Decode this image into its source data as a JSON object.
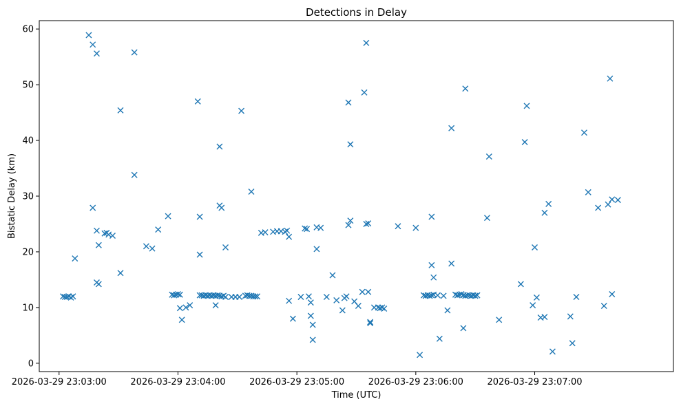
{
  "chart_data": {
    "type": "scatter",
    "title": "Detections in Delay",
    "xlabel": "Time (UTC)",
    "ylabel": "Bistatic Delay (km)",
    "marker": "x",
    "color": "#1f77b4",
    "grid": false,
    "x_unit": "seconds after 2026-03-29 23:02:00 UTC",
    "xlim": [
      50,
      370
    ],
    "ylim": [
      -1.5,
      61.5
    ],
    "x_ticks": [
      {
        "value": 60,
        "label": "2026-03-29 23:03:00"
      },
      {
        "value": 120,
        "label": "2026-03-29 23:04:00"
      },
      {
        "value": 180,
        "label": "2026-03-29 23:05:00"
      },
      {
        "value": 240,
        "label": "2026-03-29 23:06:00"
      },
      {
        "value": 300,
        "label": "2026-03-29 23:07:00"
      }
    ],
    "y_ticks": [
      {
        "value": 0,
        "label": "0"
      },
      {
        "value": 10,
        "label": "10"
      },
      {
        "value": 20,
        "label": "20"
      },
      {
        "value": 30,
        "label": "30"
      },
      {
        "value": 40,
        "label": "40"
      },
      {
        "value": 50,
        "label": "50"
      },
      {
        "value": 60,
        "label": "60"
      }
    ],
    "points": [
      [
        62,
        12.0
      ],
      [
        63,
        11.9
      ],
      [
        64,
        11.9
      ],
      [
        65,
        12.0
      ],
      [
        66,
        11.8
      ],
      [
        67,
        12.0
      ],
      [
        68,
        18.8
      ],
      [
        75,
        58.9
      ],
      [
        77,
        57.2
      ],
      [
        79,
        55.6
      ],
      [
        79,
        23.8
      ],
      [
        79,
        14.5
      ],
      [
        80,
        14.2
      ],
      [
        80,
        21.2
      ],
      [
        77,
        27.9
      ],
      [
        83,
        23.3
      ],
      [
        84,
        23.4
      ],
      [
        85,
        23.1
      ],
      [
        87,
        22.9
      ],
      [
        91,
        16.2
      ],
      [
        91,
        45.4
      ],
      [
        98,
        55.8
      ],
      [
        98,
        33.8
      ],
      [
        104,
        21.0
      ],
      [
        107,
        20.6
      ],
      [
        110,
        24.0
      ],
      [
        115,
        26.4
      ],
      [
        117,
        12.3
      ],
      [
        118,
        12.2
      ],
      [
        119,
        12.3
      ],
      [
        120,
        12.4
      ],
      [
        121,
        12.3
      ],
      [
        121,
        9.9
      ],
      [
        122,
        7.8
      ],
      [
        124,
        10.0
      ],
      [
        126,
        10.4
      ],
      [
        130,
        47.0
      ],
      [
        131,
        26.3
      ],
      [
        131,
        19.5
      ],
      [
        131,
        12.2
      ],
      [
        132,
        12.2
      ],
      [
        133,
        12.1
      ],
      [
        134,
        12.2
      ],
      [
        135,
        12.1
      ],
      [
        136,
        12.2
      ],
      [
        137,
        12.1
      ],
      [
        138,
        12.2
      ],
      [
        139,
        12.1
      ],
      [
        140,
        12.2
      ],
      [
        141,
        12.1
      ],
      [
        142,
        12.0
      ],
      [
        143,
        12.1
      ],
      [
        144,
        11.9
      ],
      [
        139,
        10.4
      ],
      [
        141,
        38.9
      ],
      [
        141,
        28.3
      ],
      [
        142,
        27.9
      ],
      [
        144,
        20.8
      ],
      [
        147,
        11.9
      ],
      [
        149,
        11.9
      ],
      [
        151,
        11.9
      ],
      [
        152,
        45.3
      ],
      [
        154,
        12.1
      ],
      [
        155,
        12.2
      ],
      [
        156,
        12.1
      ],
      [
        157,
        12.1
      ],
      [
        158,
        12.0
      ],
      [
        159,
        12.0
      ],
      [
        160,
        12.0
      ],
      [
        157,
        30.8
      ],
      [
        162,
        23.4
      ],
      [
        164,
        23.5
      ],
      [
        168,
        23.6
      ],
      [
        170,
        23.7
      ],
      [
        172,
        23.7
      ],
      [
        174,
        23.6
      ],
      [
        175,
        23.8
      ],
      [
        176,
        22.7
      ],
      [
        176,
        11.2
      ],
      [
        178,
        8.0
      ],
      [
        182,
        11.9
      ],
      [
        184,
        24.2
      ],
      [
        185,
        24.1
      ],
      [
        186,
        12.0
      ],
      [
        187,
        8.5
      ],
      [
        187,
        10.9
      ],
      [
        188,
        4.2
      ],
      [
        188,
        6.9
      ],
      [
        190,
        20.5
      ],
      [
        190,
        24.4
      ],
      [
        192,
        24.3
      ],
      [
        195,
        11.9
      ],
      [
        198,
        15.8
      ],
      [
        200,
        11.3
      ],
      [
        203,
        9.5
      ],
      [
        204,
        11.7
      ],
      [
        205,
        12.0
      ],
      [
        206,
        24.8
      ],
      [
        206,
        46.8
      ],
      [
        207,
        39.3
      ],
      [
        207,
        25.6
      ],
      [
        209,
        11.1
      ],
      [
        211,
        10.3
      ],
      [
        213,
        12.8
      ],
      [
        214,
        48.6
      ],
      [
        215,
        57.5
      ],
      [
        215,
        25.0
      ],
      [
        216,
        12.8
      ],
      [
        216,
        25.1
      ],
      [
        217,
        7.2
      ],
      [
        217,
        7.4
      ],
      [
        219,
        10.0
      ],
      [
        221,
        10.0
      ],
      [
        222,
        9.9
      ],
      [
        223,
        10.0
      ],
      [
        224,
        9.8
      ],
      [
        231,
        24.6
      ],
      [
        240,
        24.3
      ],
      [
        242,
        1.5
      ],
      [
        244,
        12.2
      ],
      [
        245,
        12.1
      ],
      [
        246,
        12.2
      ],
      [
        247,
        12.1
      ],
      [
        248,
        12.2
      ],
      [
        249,
        12.3
      ],
      [
        248,
        26.3
      ],
      [
        248,
        17.6
      ],
      [
        249,
        15.4
      ],
      [
        251,
        12.2
      ],
      [
        252,
        4.4
      ],
      [
        254,
        12.1
      ],
      [
        256,
        9.5
      ],
      [
        258,
        17.9
      ],
      [
        258,
        42.2
      ],
      [
        260,
        12.3
      ],
      [
        261,
        12.2
      ],
      [
        262,
        12.3
      ],
      [
        263,
        12.4
      ],
      [
        264,
        12.2
      ],
      [
        265,
        12.1
      ],
      [
        266,
        12.2
      ],
      [
        267,
        12.2
      ],
      [
        268,
        12.1
      ],
      [
        269,
        12.2
      ],
      [
        270,
        12.1
      ],
      [
        271,
        12.2
      ],
      [
        264,
        6.3
      ],
      [
        265,
        49.3
      ],
      [
        276,
        26.1
      ],
      [
        277,
        37.1
      ],
      [
        282,
        7.8
      ],
      [
        293,
        14.2
      ],
      [
        295,
        39.7
      ],
      [
        296,
        46.2
      ],
      [
        299,
        10.4
      ],
      [
        300,
        20.8
      ],
      [
        301,
        11.8
      ],
      [
        303,
        8.2
      ],
      [
        305,
        8.3
      ],
      [
        305,
        27.0
      ],
      [
        307,
        28.6
      ],
      [
        309,
        2.1
      ],
      [
        318,
        8.4
      ],
      [
        319,
        3.6
      ],
      [
        321,
        11.9
      ],
      [
        325,
        41.4
      ],
      [
        327,
        30.7
      ],
      [
        332,
        27.9
      ],
      [
        335,
        10.3
      ],
      [
        337,
        28.5
      ],
      [
        338,
        51.1
      ],
      [
        339,
        12.4
      ],
      [
        339,
        29.4
      ],
      [
        342,
        29.3
      ]
    ]
  }
}
